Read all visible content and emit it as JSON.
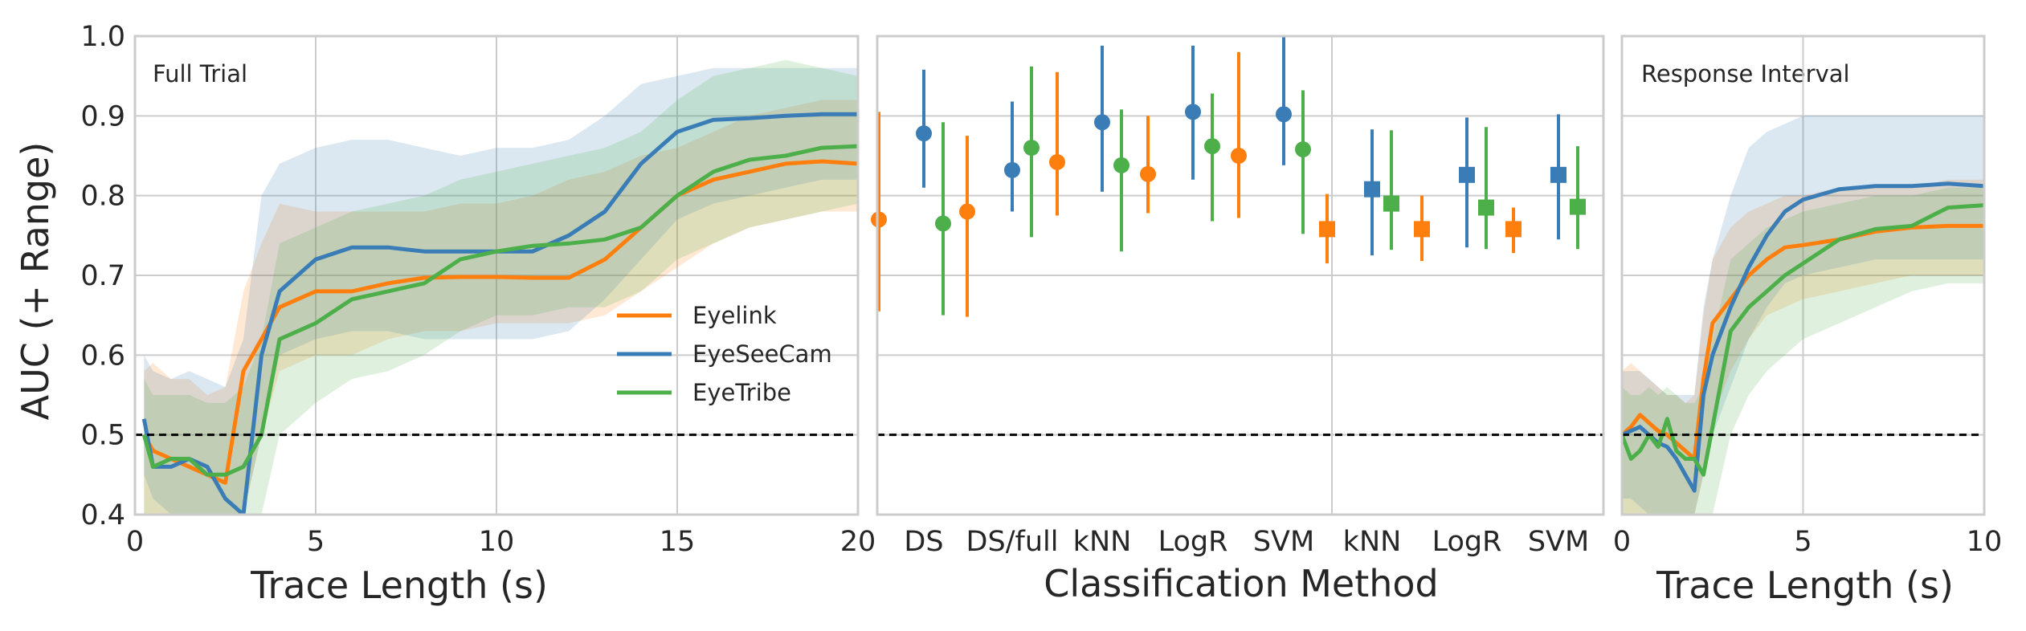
{
  "colors": {
    "Eyelink": "#ff7f0e",
    "EyeSeeCam": "#3a7db6",
    "EyeTribe": "#4daf4a",
    "grid": "#cccccc",
    "frame": "#cccccc",
    "baseline": "#000000"
  },
  "figure": {
    "ylabel": "AUC (+ Range)",
    "baseline": 0.5
  },
  "chart_data": [
    {
      "type": "line",
      "annotation": "Full Trial",
      "xlabel": "Trace Length (s)",
      "xlim": [
        0,
        20
      ],
      "ylim": [
        0.4,
        1.0
      ],
      "xticks": [
        0,
        5,
        10,
        15,
        20
      ],
      "yticks": [
        0.4,
        0.5,
        0.6,
        0.7,
        0.8,
        0.9,
        1.0
      ],
      "legend": {
        "placement": "center-right",
        "entries": [
          "Eyelink",
          "EyeSeeCam",
          "EyeTribe"
        ]
      },
      "series": [
        {
          "name": "Eyelink",
          "x": [
            0.25,
            0.5,
            1,
            1.5,
            2,
            2.5,
            3,
            3.5,
            4,
            5,
            6,
            7,
            8,
            9,
            10,
            11,
            12,
            13,
            14,
            15,
            16,
            17,
            18,
            19,
            20
          ],
          "y": [
            0.5,
            0.48,
            0.47,
            0.46,
            0.45,
            0.44,
            0.58,
            0.62,
            0.66,
            0.68,
            0.68,
            0.69,
            0.697,
            0.698,
            0.698,
            0.697,
            0.697,
            0.72,
            0.76,
            0.8,
            0.82,
            0.83,
            0.84,
            0.843,
            0.84
          ],
          "lower": [
            0.4,
            0.4,
            0.4,
            0.4,
            0.4,
            0.4,
            0.4,
            0.5,
            0.58,
            0.6,
            0.6,
            0.62,
            0.63,
            0.63,
            0.64,
            0.64,
            0.64,
            0.65,
            0.68,
            0.71,
            0.74,
            0.76,
            0.77,
            0.78,
            0.78
          ],
          "upper": [
            0.58,
            0.59,
            0.57,
            0.57,
            0.55,
            0.56,
            0.68,
            0.74,
            0.79,
            0.78,
            0.78,
            0.78,
            0.78,
            0.79,
            0.79,
            0.8,
            0.82,
            0.83,
            0.85,
            0.86,
            0.88,
            0.9,
            0.91,
            0.92,
            0.92
          ]
        },
        {
          "name": "EyeSeeCam",
          "x": [
            0.25,
            0.5,
            1,
            1.5,
            2,
            2.5,
            3,
            3.5,
            4,
            5,
            6,
            7,
            8,
            9,
            10,
            11,
            12,
            13,
            14,
            15,
            16,
            17,
            18,
            19,
            20
          ],
          "y": [
            0.52,
            0.46,
            0.46,
            0.47,
            0.46,
            0.42,
            0.4,
            0.6,
            0.68,
            0.72,
            0.735,
            0.735,
            0.73,
            0.73,
            0.73,
            0.73,
            0.75,
            0.78,
            0.84,
            0.88,
            0.895,
            0.897,
            0.9,
            0.902,
            0.902
          ],
          "lower": [
            0.45,
            0.42,
            0.4,
            0.4,
            0.4,
            0.4,
            0.4,
            0.5,
            0.6,
            0.62,
            0.63,
            0.63,
            0.62,
            0.62,
            0.62,
            0.62,
            0.63,
            0.67,
            0.72,
            0.77,
            0.79,
            0.8,
            0.81,
            0.82,
            0.82
          ],
          "upper": [
            0.6,
            0.58,
            0.57,
            0.58,
            0.57,
            0.56,
            0.62,
            0.8,
            0.84,
            0.86,
            0.87,
            0.87,
            0.86,
            0.85,
            0.86,
            0.86,
            0.87,
            0.9,
            0.94,
            0.95,
            0.96,
            0.96,
            0.96,
            0.96,
            0.96
          ]
        },
        {
          "name": "EyeTribe",
          "x": [
            0.25,
            0.5,
            1,
            1.5,
            2,
            2.5,
            3,
            3.5,
            4,
            5,
            6,
            7,
            8,
            9,
            10,
            11,
            12,
            13,
            14,
            15,
            16,
            17,
            18,
            19,
            20
          ],
          "y": [
            0.5,
            0.46,
            0.47,
            0.47,
            0.45,
            0.45,
            0.46,
            0.5,
            0.62,
            0.64,
            0.67,
            0.68,
            0.69,
            0.72,
            0.73,
            0.737,
            0.74,
            0.745,
            0.76,
            0.8,
            0.83,
            0.845,
            0.85,
            0.86,
            0.862
          ],
          "lower": [
            0.4,
            0.4,
            0.4,
            0.4,
            0.4,
            0.4,
            0.4,
            0.4,
            0.5,
            0.54,
            0.57,
            0.58,
            0.6,
            0.63,
            0.65,
            0.65,
            0.66,
            0.66,
            0.68,
            0.72,
            0.74,
            0.76,
            0.77,
            0.78,
            0.79
          ],
          "upper": [
            0.57,
            0.55,
            0.55,
            0.55,
            0.54,
            0.54,
            0.56,
            0.62,
            0.74,
            0.76,
            0.78,
            0.79,
            0.8,
            0.82,
            0.83,
            0.84,
            0.85,
            0.86,
            0.88,
            0.92,
            0.95,
            0.96,
            0.97,
            0.96,
            0.95
          ]
        }
      ]
    },
    {
      "type": "scatter",
      "xlabel": "Classification Method",
      "ylim": [
        0.4,
        1.0
      ],
      "yticks": [
        0.4,
        0.5,
        0.6,
        0.7,
        0.8,
        0.9,
        1.0
      ],
      "categories": [
        "DS",
        "DS/full",
        "kNN",
        "LogR",
        "SVM",
        "kNN",
        "LogR",
        "SVM"
      ],
      "marker_groups": [
        {
          "marker": "circle",
          "categories": [
            0,
            1,
            2,
            3,
            4
          ]
        },
        {
          "marker": "square",
          "categories": [
            5,
            6,
            7
          ]
        }
      ],
      "series": [
        {
          "name": "Eyelink",
          "values": [
            0.77,
            0.78,
            0.842,
            0.827,
            0.85,
            0.758,
            0.758,
            0.758
          ],
          "lower": [
            0.655,
            0.648,
            0.775,
            0.778,
            0.772,
            0.715,
            0.718,
            0.728
          ],
          "upper": [
            0.905,
            0.875,
            0.955,
            0.9,
            0.98,
            0.802,
            0.8,
            0.785
          ]
        },
        {
          "name": "EyeSeeCam",
          "values": [
            0.878,
            0.832,
            0.892,
            0.905,
            0.902,
            0.808,
            0.826,
            0.826
          ],
          "lower": [
            0.81,
            0.78,
            0.805,
            0.82,
            0.838,
            0.725,
            0.735,
            0.745
          ],
          "upper": [
            0.958,
            0.918,
            0.988,
            0.988,
            1.0,
            0.883,
            0.898,
            0.902
          ]
        },
        {
          "name": "EyeTribe",
          "values": [
            0.765,
            0.86,
            0.838,
            0.862,
            0.858,
            0.79,
            0.785,
            0.786
          ],
          "lower": [
            0.65,
            0.748,
            0.73,
            0.768,
            0.752,
            0.732,
            0.733,
            0.733
          ],
          "upper": [
            0.892,
            0.962,
            0.908,
            0.928,
            0.932,
            0.882,
            0.886,
            0.862
          ]
        }
      ]
    },
    {
      "type": "line",
      "annotation": "Response Interval",
      "xlabel": "Trace Length (s)",
      "xlim": [
        0,
        10
      ],
      "ylim": [
        0.4,
        1.0
      ],
      "xticks": [
        0,
        5,
        10
      ],
      "yticks": [
        0.4,
        0.5,
        0.6,
        0.7,
        0.8,
        0.9,
        1.0
      ],
      "series": [
        {
          "name": "Eyelink",
          "x": [
            0,
            0.25,
            0.5,
            0.75,
            1,
            1.25,
            1.5,
            1.75,
            2,
            2.25,
            2.5,
            3,
            3.5,
            4,
            4.5,
            5,
            6,
            7,
            8,
            9,
            10
          ],
          "y": [
            0.5,
            0.51,
            0.525,
            0.515,
            0.505,
            0.5,
            0.49,
            0.48,
            0.47,
            0.57,
            0.64,
            0.67,
            0.7,
            0.72,
            0.735,
            0.738,
            0.745,
            0.755,
            0.76,
            0.762,
            0.762
          ],
          "lower": [
            0.4,
            0.4,
            0.4,
            0.4,
            0.4,
            0.4,
            0.4,
            0.4,
            0.4,
            0.45,
            0.52,
            0.58,
            0.62,
            0.65,
            0.66,
            0.67,
            0.68,
            0.69,
            0.7,
            0.7,
            0.7
          ],
          "upper": [
            0.58,
            0.59,
            0.58,
            0.57,
            0.56,
            0.55,
            0.55,
            0.54,
            0.55,
            0.65,
            0.72,
            0.76,
            0.78,
            0.79,
            0.8,
            0.8,
            0.81,
            0.81,
            0.81,
            0.82,
            0.82
          ]
        },
        {
          "name": "EyeSeeCam",
          "x": [
            0,
            0.25,
            0.5,
            0.75,
            1,
            1.25,
            1.5,
            1.75,
            2,
            2.25,
            2.5,
            3,
            3.5,
            4,
            4.5,
            5,
            6,
            7,
            8,
            9,
            10
          ],
          "y": [
            0.5,
            0.505,
            0.51,
            0.5,
            0.49,
            0.485,
            0.47,
            0.45,
            0.43,
            0.55,
            0.6,
            0.66,
            0.71,
            0.75,
            0.78,
            0.795,
            0.808,
            0.812,
            0.812,
            0.815,
            0.812
          ],
          "lower": [
            0.42,
            0.42,
            0.41,
            0.4,
            0.4,
            0.4,
            0.4,
            0.4,
            0.4,
            0.45,
            0.5,
            0.56,
            0.62,
            0.66,
            0.69,
            0.7,
            0.71,
            0.72,
            0.72,
            0.72,
            0.72
          ],
          "upper": [
            0.58,
            0.58,
            0.58,
            0.57,
            0.56,
            0.55,
            0.55,
            0.55,
            0.55,
            0.66,
            0.72,
            0.8,
            0.86,
            0.88,
            0.89,
            0.9,
            0.9,
            0.9,
            0.9,
            0.9,
            0.9
          ]
        },
        {
          "name": "EyeTribe",
          "x": [
            0,
            0.25,
            0.5,
            0.75,
            1,
            1.25,
            1.5,
            1.75,
            2,
            2.25,
            2.5,
            3,
            3.5,
            4,
            4.5,
            5,
            6,
            7,
            8,
            9,
            10
          ],
          "y": [
            0.5,
            0.47,
            0.48,
            0.5,
            0.485,
            0.52,
            0.48,
            0.47,
            0.47,
            0.45,
            0.51,
            0.63,
            0.66,
            0.68,
            0.7,
            0.715,
            0.745,
            0.758,
            0.762,
            0.785,
            0.788
          ],
          "lower": [
            0.4,
            0.4,
            0.4,
            0.4,
            0.4,
            0.4,
            0.4,
            0.4,
            0.4,
            0.4,
            0.4,
            0.5,
            0.55,
            0.58,
            0.6,
            0.62,
            0.64,
            0.66,
            0.68,
            0.69,
            0.69
          ],
          "upper": [
            0.56,
            0.55,
            0.55,
            0.56,
            0.55,
            0.56,
            0.55,
            0.54,
            0.54,
            0.56,
            0.62,
            0.72,
            0.74,
            0.76,
            0.77,
            0.78,
            0.79,
            0.8,
            0.8,
            0.81,
            0.81
          ]
        }
      ]
    }
  ]
}
